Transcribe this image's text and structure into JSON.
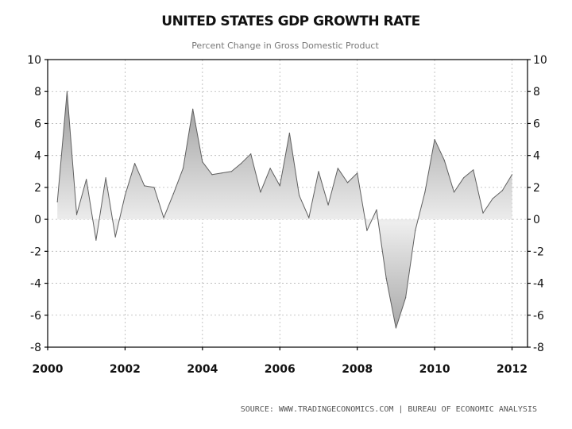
{
  "chart_data": {
    "type": "area",
    "title": "UNITED STATES GDP GROWTH RATE",
    "subtitle": "Percent Change in Gross Domestic Product",
    "source": "SOURCE: WWW.TRADINGECONOMICS.COM | BUREAU OF ECONOMIC ANALYSIS",
    "xlabel": "",
    "ylabel": "",
    "xlim": [
      2000,
      2012.4
    ],
    "ylim": [
      -8,
      10
    ],
    "x_ticks": [
      2000,
      2002,
      2004,
      2006,
      2008,
      2010,
      2012
    ],
    "y_ticks": [
      10,
      8,
      6,
      4,
      2,
      0,
      -2,
      -4,
      -6,
      -8
    ],
    "grid": true,
    "legend": "none",
    "colors": {
      "line": "#606060",
      "fill_peak": "#9a9a9a",
      "fill_zero": "#eeeeee",
      "fill_trough": "#a8a8a8"
    },
    "series": [
      {
        "name": "GDP Growth Rate",
        "x": [
          2000.25,
          2000.5,
          2000.75,
          2001.0,
          2001.25,
          2001.5,
          2001.75,
          2002.0,
          2002.25,
          2002.5,
          2002.75,
          2003.0,
          2003.25,
          2003.5,
          2003.75,
          2004.0,
          2004.25,
          2004.5,
          2004.75,
          2005.0,
          2005.25,
          2005.5,
          2005.75,
          2006.0,
          2006.25,
          2006.5,
          2006.75,
          2007.0,
          2007.25,
          2007.5,
          2007.75,
          2008.0,
          2008.25,
          2008.5,
          2008.75,
          2009.0,
          2009.25,
          2009.5,
          2009.75,
          2010.0,
          2010.25,
          2010.5,
          2010.75,
          2011.0,
          2011.25,
          2011.5,
          2011.75,
          2012.0
        ],
        "values": [
          1.1,
          8.0,
          0.3,
          2.5,
          -1.3,
          2.6,
          -1.1,
          1.5,
          3.5,
          2.1,
          2.0,
          0.1,
          1.6,
          3.2,
          6.9,
          3.6,
          2.8,
          2.9,
          3.0,
          3.5,
          4.1,
          1.7,
          3.2,
          2.1,
          5.4,
          1.5,
          0.1,
          3.0,
          0.9,
          3.2,
          2.3,
          2.9,
          -0.7,
          0.6,
          -3.7,
          -6.8,
          -4.9,
          -0.7,
          1.7,
          5.0,
          3.7,
          1.7,
          2.6,
          3.1,
          0.4,
          1.3,
          1.8,
          2.8
        ]
      }
    ]
  }
}
